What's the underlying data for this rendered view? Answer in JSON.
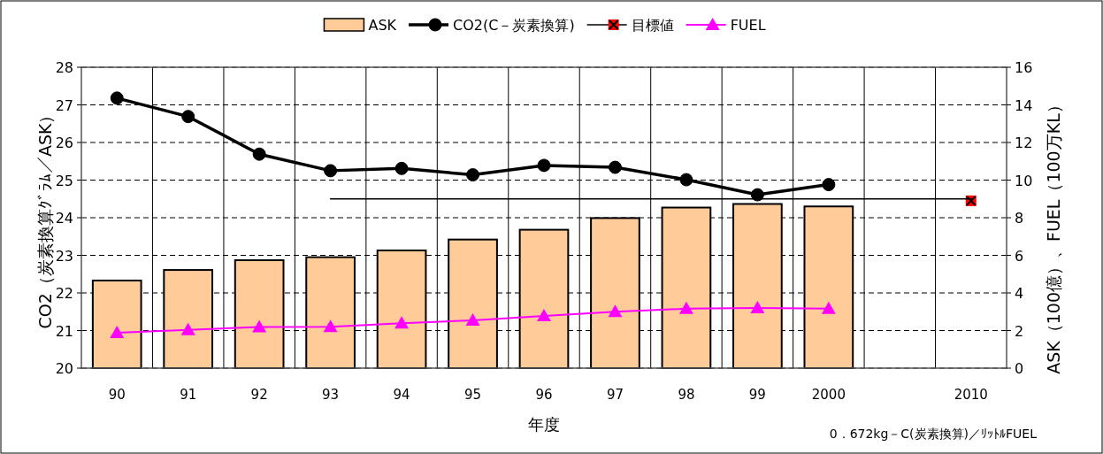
{
  "chart_data": {
    "type": "bar",
    "categories": [
      "90",
      "91",
      "92",
      "93",
      "94",
      "95",
      "96",
      "97",
      "98",
      "99",
      "2000",
      null,
      "2010"
    ],
    "xlabel": "年度",
    "ylabel": "CO2（炭素換算ｸﾞﾗﾑ／ASK）",
    "y2label": "ASK（100億）、FUEL（100万KL）",
    "ylim": [
      20,
      28
    ],
    "yticks": [
      20,
      21,
      22,
      23,
      24,
      25,
      26,
      27,
      28
    ],
    "y2lim": [
      0,
      16
    ],
    "y2ticks": [
      0,
      2,
      4,
      6,
      8,
      10,
      12,
      14,
      16
    ],
    "grid": true,
    "legend": "top",
    "annotations": [
      "0．672kg－C(炭素換算)／ﾘｯﾄﾙFUEL"
    ],
    "series": [
      {
        "name": "ASK",
        "axis": "y2",
        "color": "#ffcc99",
        "values": [
          4.66,
          5.22,
          5.74,
          5.9,
          6.26,
          6.84,
          7.36,
          7.98,
          8.54,
          8.73,
          8.6,
          null,
          null
        ]
      },
      {
        "name": "CO2(C－炭素換算)",
        "type": "line",
        "color": "#000000",
        "marker": "circle",
        "values": [
          27.18,
          26.69,
          25.69,
          25.25,
          25.31,
          25.14,
          25.39,
          25.34,
          25.01,
          24.61,
          24.88,
          null,
          null
        ]
      },
      {
        "name": "目標値",
        "type": "line",
        "color": "#ff0000",
        "marker": "square",
        "values": [
          null,
          null,
          null,
          null,
          null,
          null,
          null,
          null,
          null,
          null,
          null,
          null,
          24.45
        ]
      },
      {
        "name": "FUEL",
        "type": "line",
        "axis": "y2",
        "color": "#ff00ff",
        "marker": "triangle",
        "values": [
          1.88,
          2.04,
          2.19,
          2.2,
          2.39,
          2.54,
          2.78,
          3.0,
          3.16,
          3.2,
          3.16,
          null,
          null
        ]
      },
      {
        "type": "line",
        "color": "#000000",
        "marker": "none",
        "values": [
          null,
          null,
          null,
          24.5,
          24.5,
          24.5,
          24.5,
          24.5,
          24.5,
          24.5,
          24.5,
          24.5,
          24.5
        ]
      }
    ]
  }
}
